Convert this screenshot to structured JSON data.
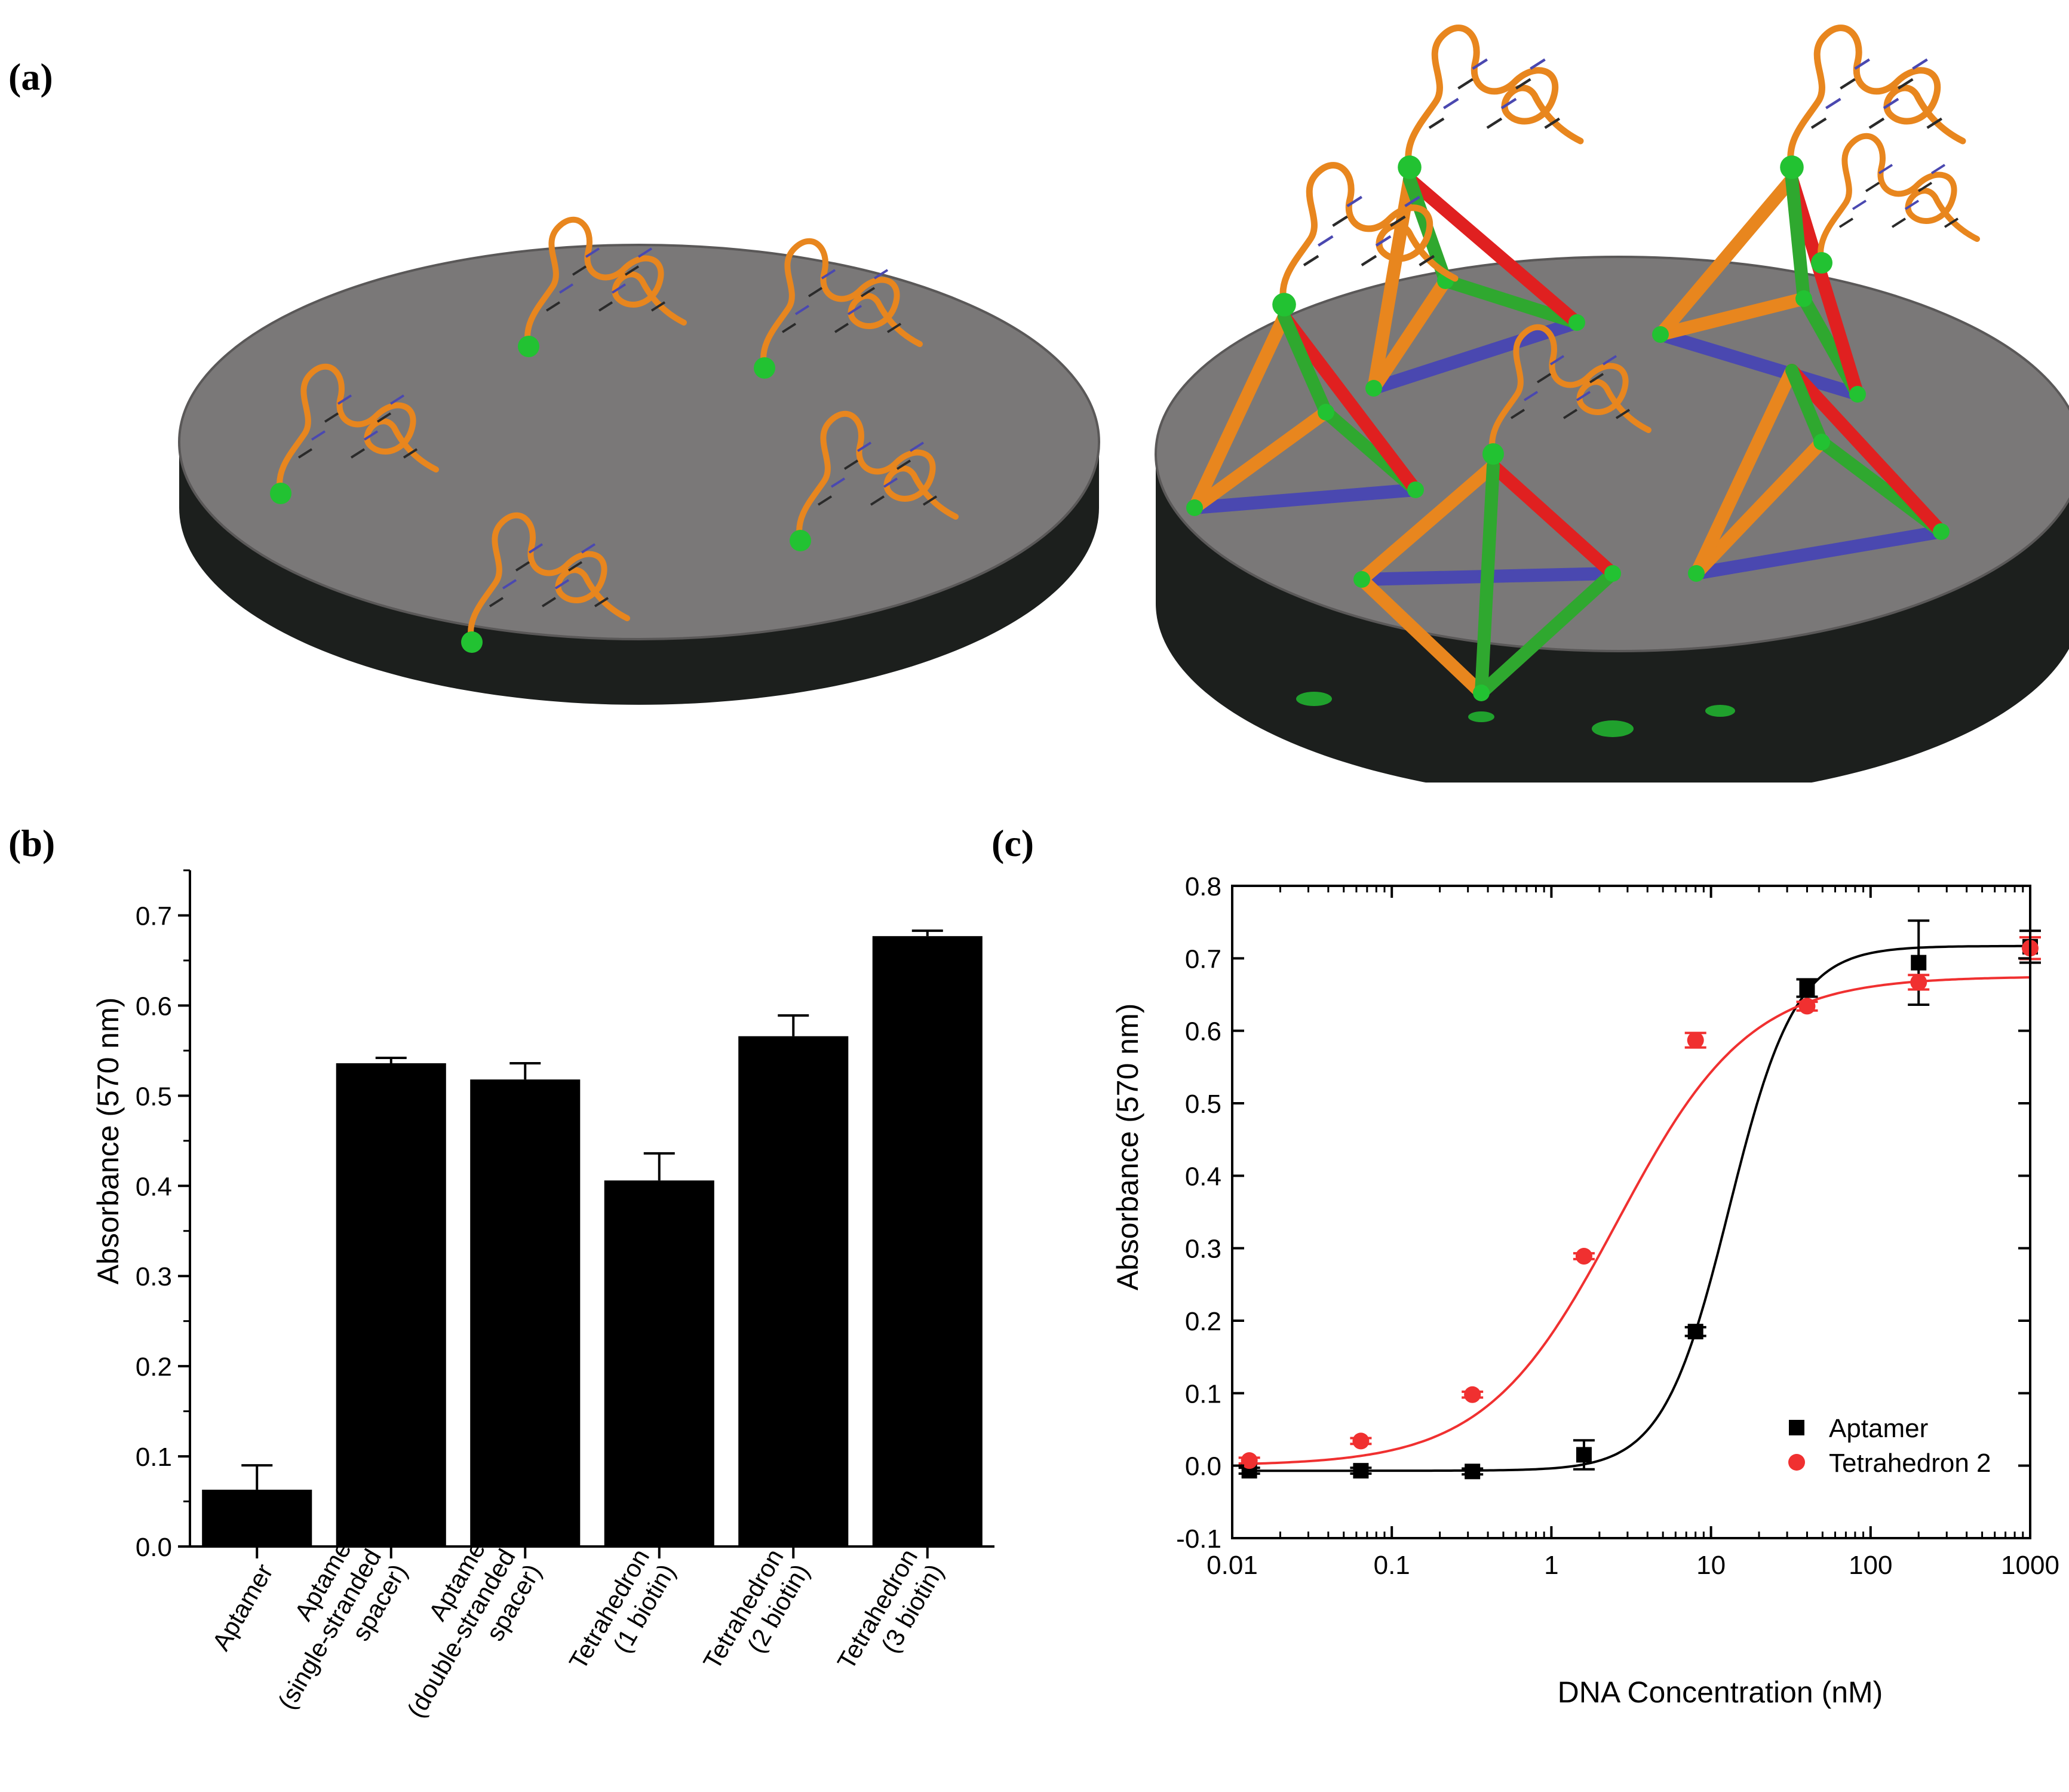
{
  "panel_labels": {
    "a": "(a)",
    "b": "(b)",
    "c": "(c)"
  },
  "colors": {
    "disk_top": "#7a7878",
    "disk_side": "#1c1f1d",
    "biotin_green": "#22c232",
    "strand_orange": "#e8861e",
    "strand_red": "#e02020",
    "strand_green": "#2fa82f",
    "strand_blue": "#4a48b0",
    "series_aptamer": "#000000",
    "series_tetrahedron": "#f03030"
  },
  "chart_data": [
    {
      "type": "bar",
      "panel": "b",
      "categories": [
        "Aptamer",
        "Aptamer\n(single-stranded\nspacer)",
        "Aptamer\n(double-stranded\nspacer)",
        "Tetrahedron\n(1 biotin)",
        "Tetrahedron\n(2 biotin)",
        "Tetrahedron\n(3 biotin)"
      ],
      "values": [
        0.063,
        0.536,
        0.518,
        0.406,
        0.566,
        0.677
      ],
      "errors": [
        0.027,
        0.006,
        0.018,
        0.03,
        0.023,
        0.006
      ],
      "title": "",
      "xlabel": "",
      "ylabel": "Absorbance (570 nm)",
      "ylim": [
        0.0,
        0.75
      ],
      "yticks": [
        "0.0",
        "0.1",
        "0.2",
        "0.3",
        "0.4",
        "0.5",
        "0.6",
        "0.7"
      ],
      "grid": false
    },
    {
      "type": "scatter",
      "panel": "c",
      "xscale": "log",
      "xlabel": "DNA Concentration (nM)",
      "ylabel": "Absorbance (570 nm)",
      "xlim": [
        0.01,
        1000
      ],
      "ylim": [
        -0.1,
        0.8
      ],
      "xticks": [
        "0.01",
        "0.1",
        "1",
        "10",
        "100",
        "1000"
      ],
      "yticks": [
        "-0.1",
        "0.0",
        "0.1",
        "0.2",
        "0.3",
        "0.4",
        "0.5",
        "0.6",
        "0.7",
        "0.8"
      ],
      "legend_position": "bottom-right",
      "series": [
        {
          "name": "Aptamer",
          "marker": "square",
          "x": [
            0.0128,
            0.064,
            0.32,
            1.6,
            8,
            40,
            200,
            1000
          ],
          "y": [
            -0.007,
            -0.007,
            -0.008,
            0.015,
            0.185,
            0.659,
            0.694,
            0.716
          ],
          "errors": [
            0.004,
            0.004,
            0.004,
            0.02,
            0.006,
            0.012,
            0.058,
            0.022
          ],
          "fit": {
            "model": "logistic",
            "bottom": -0.007,
            "top": 0.717,
            "ec50": 13.0,
            "hill": 2.1
          }
        },
        {
          "name": "Tetrahedron 2",
          "marker": "circle",
          "x": [
            0.0128,
            0.064,
            0.32,
            1.6,
            8,
            40,
            200,
            1000
          ],
          "y": [
            0.007,
            0.034,
            0.098,
            0.289,
            0.587,
            0.634,
            0.667,
            0.714
          ],
          "errors": [
            0.004,
            0.004,
            0.004,
            0.004,
            0.01,
            0.006,
            0.01,
            0.015
          ],
          "fit": {
            "model": "logistic",
            "bottom": 0.0,
            "top": 0.675,
            "ec50": 2.6,
            "hill": 1.05
          }
        }
      ]
    }
  ]
}
